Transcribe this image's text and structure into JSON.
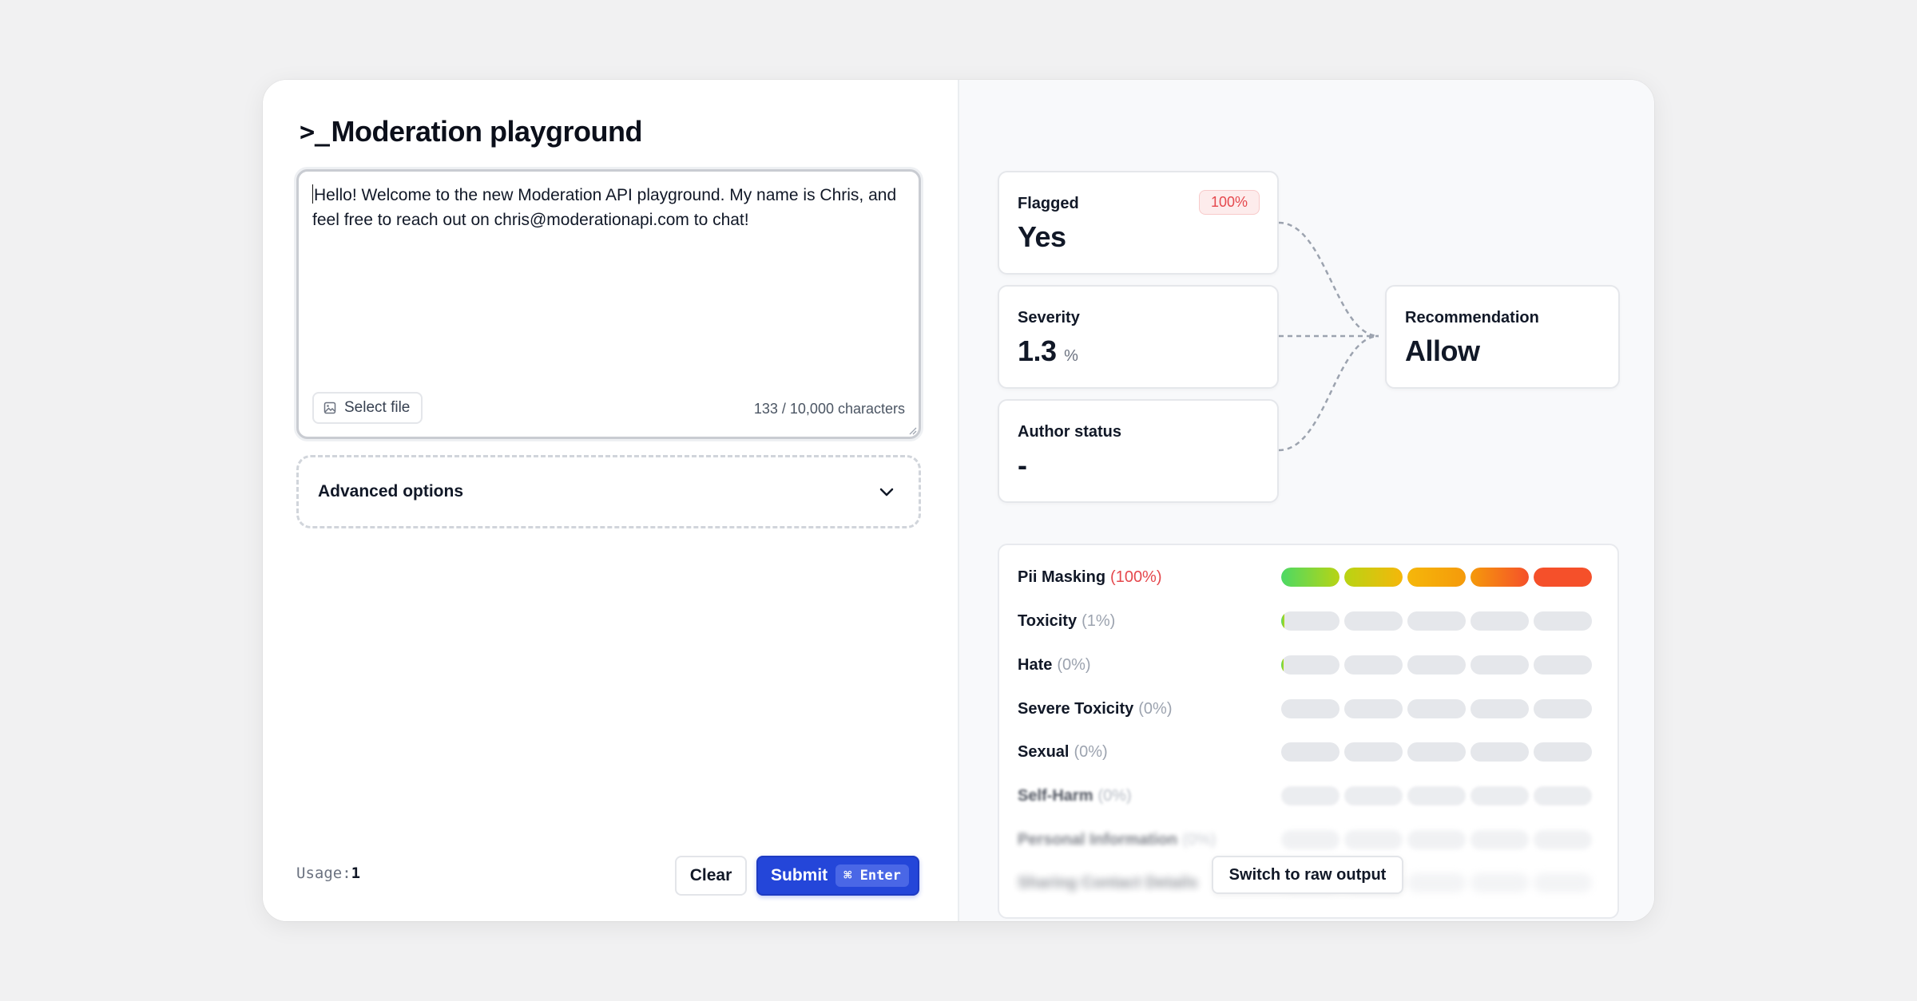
{
  "header": {
    "prompt_symbol": ">_",
    "title": "Moderation playground"
  },
  "editor": {
    "text": "Hello! Welcome to the new Moderation API playground. My name is Chris, and feel free to reach out on chris@moderationapi.com to chat!",
    "select_file_label": "Select file",
    "char_count": "133 / 10,000 characters"
  },
  "advanced": {
    "label": "Advanced options"
  },
  "footer": {
    "usage_label": "Usage:",
    "usage_value": "1",
    "clear_label": "Clear",
    "submit_label": "Submit",
    "shortcut": "⌘ Enter"
  },
  "stats": {
    "flagged": {
      "label": "Flagged",
      "value": "Yes",
      "badge": "100%"
    },
    "severity": {
      "label": "Severity",
      "value": "1.3",
      "unit": "%"
    },
    "author": {
      "label": "Author status",
      "value": "-"
    },
    "recommendation": {
      "label": "Recommendation",
      "value": "Allow"
    }
  },
  "colors": {
    "accent": "#2446d9",
    "danger": "#e5484d",
    "scale": [
      "#4cd964",
      "#b8d414",
      "#f5b70a",
      "#f59a0b",
      "#f5502a"
    ]
  },
  "categories": [
    {
      "name": "Pii Masking",
      "pct": "(100%)",
      "score": 1.0,
      "hot": true
    },
    {
      "name": "Toxicity",
      "pct": "(1%)",
      "score": 0.01
    },
    {
      "name": "Hate",
      "pct": "(0%)",
      "score": 0.004
    },
    {
      "name": "Severe Toxicity",
      "pct": "(0%)",
      "score": 0
    },
    {
      "name": "Sexual",
      "pct": "(0%)",
      "score": 0
    },
    {
      "name": "Self-Harm",
      "pct": "(0%)",
      "score": 0
    },
    {
      "name": "Personal Information",
      "pct": "(0%)",
      "score": 0
    },
    {
      "name": "Sharing Contact Details",
      "pct": "",
      "score": 0
    }
  ],
  "raw_output_label": "Switch to raw output"
}
